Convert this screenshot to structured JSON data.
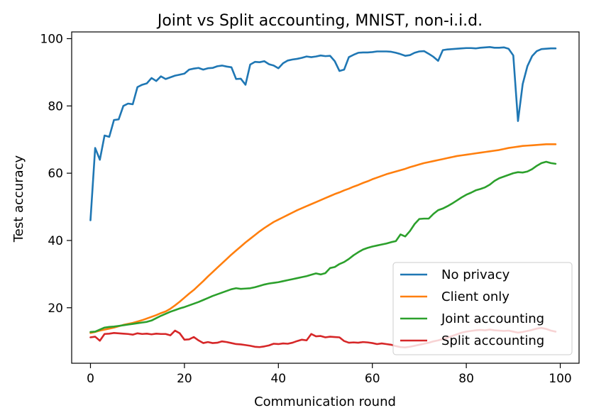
{
  "chart_data": {
    "type": "line",
    "title": "Joint vs Split accounting, MNIST, non-i.i.d.",
    "xlabel": "Communication round",
    "ylabel": "Test accuracy",
    "xlim": [
      -4,
      104
    ],
    "ylim": [
      3.5,
      102
    ],
    "xticks": [
      0,
      20,
      40,
      60,
      80,
      100
    ],
    "yticks": [
      20,
      40,
      60,
      80,
      100
    ],
    "grid": false,
    "legend_position": "bottom-right",
    "series": [
      {
        "name": "No privacy",
        "color": "#1f77b4",
        "x": [
          0,
          1,
          2,
          3,
          4,
          5,
          6,
          7,
          8,
          9,
          10,
          11,
          12,
          13,
          14,
          15,
          16,
          17,
          18,
          19,
          20,
          21,
          22,
          23,
          24,
          25,
          26,
          27,
          28,
          29,
          30,
          31,
          32,
          33,
          34,
          35,
          36,
          37,
          38,
          39,
          40,
          41,
          42,
          43,
          44,
          45,
          46,
          47,
          48,
          49,
          50,
          51,
          52,
          53,
          54,
          55,
          56,
          57,
          58,
          59,
          60,
          61,
          62,
          63,
          64,
          65,
          66,
          67,
          68,
          69,
          70,
          71,
          72,
          73,
          74,
          75,
          76,
          77,
          78,
          79,
          80,
          81,
          82,
          83,
          84,
          85,
          86,
          87,
          88,
          89,
          90,
          91,
          92,
          93,
          94,
          95,
          96,
          97,
          98,
          99
        ],
        "y": [
          46,
          67.5,
          64,
          71.2,
          70.8,
          75.8,
          76,
          80,
          80.7,
          80.5,
          85.6,
          86.3,
          86.7,
          88.3,
          87.4,
          88.8,
          88,
          88.5,
          89,
          89.3,
          89.6,
          90.8,
          91.1,
          91.3,
          90.8,
          91.2,
          91.3,
          91.8,
          92,
          91.7,
          91.5,
          88,
          88.1,
          86.3,
          92.3,
          93.1,
          93,
          93.3,
          92.4,
          92,
          91.2,
          92.7,
          93.5,
          93.8,
          94,
          94.3,
          94.7,
          94.5,
          94.7,
          95,
          94.8,
          94.9,
          93.3,
          90.4,
          90.8,
          94.5,
          95.2,
          95.8,
          95.9,
          95.9,
          96,
          96.2,
          96.2,
          96.2,
          96.1,
          95.8,
          95.4,
          94.9,
          95.1,
          95.8,
          96.2,
          96.3,
          95.5,
          94.6,
          93.4,
          96.6,
          96.8,
          96.9,
          97,
          97.1,
          97.2,
          97.2,
          97.1,
          97.3,
          97.4,
          97.5,
          97.3,
          97.3,
          97.4,
          97,
          95,
          75.5,
          86.5,
          91.8,
          94.8,
          96.3,
          96.9,
          97,
          97.1,
          97.1
        ]
      },
      {
        "name": "Client only",
        "color": "#ff7f0e",
        "x": [
          0,
          1,
          2,
          3,
          4,
          5,
          6,
          7,
          8,
          9,
          10,
          11,
          12,
          13,
          14,
          15,
          16,
          17,
          18,
          19,
          20,
          21,
          22,
          23,
          24,
          25,
          26,
          27,
          28,
          29,
          30,
          31,
          32,
          33,
          34,
          35,
          36,
          37,
          38,
          39,
          40,
          41,
          42,
          43,
          44,
          45,
          46,
          47,
          48,
          49,
          50,
          51,
          52,
          53,
          54,
          55,
          56,
          57,
          58,
          59,
          60,
          61,
          62,
          63,
          64,
          65,
          66,
          67,
          68,
          69,
          70,
          71,
          72,
          73,
          74,
          75,
          76,
          77,
          78,
          79,
          80,
          81,
          82,
          83,
          84,
          85,
          86,
          87,
          88,
          89,
          90,
          91,
          92,
          93,
          94,
          95,
          96,
          97,
          98,
          99
        ],
        "y": [
          12.5,
          12.8,
          13.2,
          13.5,
          13.8,
          14.1,
          14.5,
          14.9,
          15.2,
          15.5,
          15.9,
          16.3,
          16.8,
          17.3,
          17.8,
          18.4,
          18.9,
          19.7,
          20.7,
          21.8,
          23,
          24.2,
          25.3,
          26.6,
          27.9,
          29.3,
          30.6,
          31.9,
          33.2,
          34.5,
          35.8,
          37,
          38.2,
          39.4,
          40.5,
          41.6,
          42.7,
          43.7,
          44.6,
          45.5,
          46.2,
          46.9,
          47.6,
          48.3,
          49,
          49.6,
          50.2,
          50.8,
          51.4,
          52,
          52.6,
          53.2,
          53.8,
          54.3,
          54.9,
          55.4,
          56,
          56.5,
          57.1,
          57.6,
          58.2,
          58.7,
          59.2,
          59.7,
          60.1,
          60.5,
          60.9,
          61.3,
          61.8,
          62.2,
          62.6,
          63,
          63.3,
          63.6,
          63.9,
          64.2,
          64.5,
          64.8,
          65.1,
          65.3,
          65.5,
          65.7,
          65.9,
          66.1,
          66.3,
          66.5,
          66.7,
          66.9,
          67.2,
          67.5,
          67.7,
          67.9,
          68.1,
          68.2,
          68.3,
          68.4,
          68.5,
          68.6,
          68.6,
          68.6
        ]
      },
      {
        "name": "Joint accounting",
        "color": "#2ca02c",
        "x": [
          0,
          1,
          2,
          3,
          4,
          5,
          6,
          7,
          8,
          9,
          10,
          11,
          12,
          13,
          14,
          15,
          16,
          17,
          18,
          19,
          20,
          21,
          22,
          23,
          24,
          25,
          26,
          27,
          28,
          29,
          30,
          31,
          32,
          33,
          34,
          35,
          36,
          37,
          38,
          39,
          40,
          41,
          42,
          43,
          44,
          45,
          46,
          47,
          48,
          49,
          50,
          51,
          52,
          53,
          54,
          55,
          56,
          57,
          58,
          59,
          60,
          61,
          62,
          63,
          64,
          65,
          66,
          67,
          68,
          69,
          70,
          71,
          72,
          73,
          74,
          75,
          76,
          77,
          78,
          79,
          80,
          81,
          82,
          83,
          84,
          85,
          86,
          87,
          88,
          89,
          90,
          91,
          92,
          93,
          94,
          95,
          96,
          97,
          98,
          99
        ],
        "y": [
          12.8,
          12.9,
          13.5,
          14.1,
          14.3,
          14.4,
          14.6,
          14.8,
          15,
          15.2,
          15.4,
          15.6,
          15.8,
          16.2,
          16.9,
          17.6,
          18.2,
          18.8,
          19.3,
          19.8,
          20.2,
          20.7,
          21.2,
          21.7,
          22.3,
          22.9,
          23.5,
          24,
          24.5,
          25,
          25.5,
          25.8,
          25.6,
          25.7,
          25.8,
          26.1,
          26.5,
          26.9,
          27.2,
          27.4,
          27.6,
          27.9,
          28.2,
          28.5,
          28.8,
          29.1,
          29.4,
          29.8,
          30.2,
          29.9,
          30.3,
          31.8,
          32.1,
          33,
          33.6,
          34.5,
          35.6,
          36.5,
          37.3,
          37.8,
          38.2,
          38.5,
          38.8,
          39.1,
          39.5,
          39.8,
          41.8,
          41.2,
          42.8,
          44.9,
          46.4,
          46.5,
          46.5,
          47.9,
          49,
          49.5,
          50.2,
          51,
          51.9,
          52.8,
          53.6,
          54.2,
          54.9,
          55.3,
          55.8,
          56.6,
          57.7,
          58.5,
          59,
          59.5,
          60,
          60.3,
          60.2,
          60.5,
          61.2,
          62.2,
          63,
          63.4,
          63,
          62.8
        ]
      },
      {
        "name": "Split accounting",
        "color": "#d62728",
        "x": [
          0,
          1,
          2,
          3,
          4,
          5,
          6,
          7,
          8,
          9,
          10,
          11,
          12,
          13,
          14,
          15,
          16,
          17,
          18,
          19,
          20,
          21,
          22,
          23,
          24,
          25,
          26,
          27,
          28,
          29,
          30,
          31,
          32,
          33,
          34,
          35,
          36,
          37,
          38,
          39,
          40,
          41,
          42,
          43,
          44,
          45,
          46,
          47,
          48,
          49,
          50,
          51,
          52,
          53,
          54,
          55,
          56,
          57,
          58,
          59,
          60,
          61,
          62,
          63,
          64,
          65,
          66,
          67,
          68,
          69,
          70,
          71,
          72,
          73,
          74,
          75,
          76,
          77,
          78,
          79,
          80,
          81,
          82,
          83,
          84,
          85,
          86,
          87,
          88,
          89,
          90,
          91,
          92,
          93,
          94,
          95,
          96,
          97,
          98,
          99
        ],
        "y": [
          11.2,
          11.4,
          10.2,
          12.2,
          12.3,
          12.5,
          12.4,
          12.3,
          12.2,
          12,
          12.4,
          12.2,
          12.3,
          12.1,
          12.3,
          12.2,
          12.2,
          11.8,
          13.2,
          12.4,
          10.5,
          10.6,
          11.3,
          10.3,
          9.5,
          9.8,
          9.5,
          9.6,
          10,
          9.8,
          9.5,
          9.2,
          9.1,
          8.9,
          8.7,
          8.4,
          8.3,
          8.5,
          8.8,
          9.3,
          9.2,
          9.4,
          9.3,
          9.6,
          10.1,
          10.5,
          10.3,
          12.2,
          11.5,
          11.6,
          11.2,
          11.4,
          11.3,
          11.2,
          10.1,
          9.6,
          9.7,
          9.6,
          9.8,
          9.7,
          9.5,
          9.2,
          9.4,
          9.2,
          9,
          8.6,
          8.3,
          8.2,
          8.4,
          8.7,
          9,
          9.3,
          9.6,
          10,
          10.3,
          10.7,
          11.1,
          11.6,
          12.1,
          12.6,
          12.9,
          13.1,
          13.3,
          13.4,
          13.3,
          13.5,
          13.3,
          13.2,
          13.1,
          13.2,
          12.9,
          12.6,
          12.8,
          13.1,
          13.4,
          13.8,
          14,
          13.7,
          13.2,
          12.9
        ]
      }
    ]
  }
}
